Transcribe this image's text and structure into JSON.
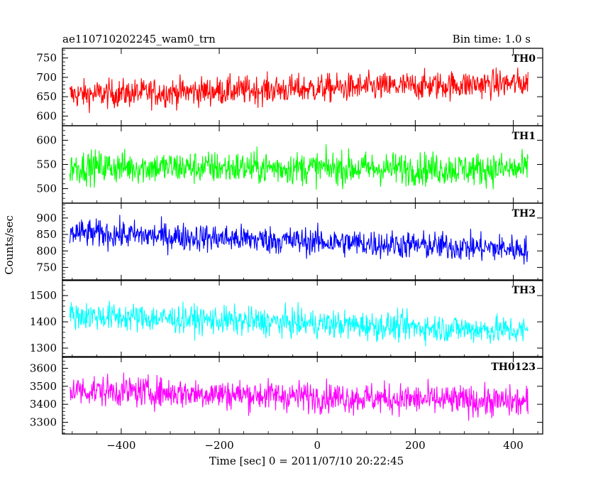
{
  "header": {
    "title": "ae110710202245_wam0_trn",
    "bin_time": "Bin time: 1.0 s"
  },
  "chart_data": {
    "type": "line",
    "title": "ae110710202245_wam0_trn",
    "xlabel": "Time [sec] 0 = 2011/07/10 20:22:45",
    "ylabel": "Counts/sec",
    "xlim": [
      -520,
      460
    ],
    "x_range": [
      -505,
      430
    ],
    "x_step": 1.0,
    "x_ticks": [
      -400,
      -200,
      0,
      200,
      400
    ],
    "grid": false,
    "panels": [
      {
        "name": "TH0",
        "color": "#ff0000",
        "ylim": [
          575,
          775
        ],
        "y_ticks": [
          600,
          650,
          700,
          750
        ],
        "trend_start": 655,
        "trend_end": 685,
        "noise": 26
      },
      {
        "name": "TH1",
        "color": "#00ff00",
        "ylim": [
          470,
          630
        ],
        "y_ticks": [
          500,
          550,
          600
        ],
        "trend_start": 545,
        "trend_end": 540,
        "noise": 24
      },
      {
        "name": "TH2",
        "color": "#0000ff",
        "ylim": [
          710,
          945
        ],
        "y_ticks": [
          750,
          800,
          850,
          900
        ],
        "trend_start": 855,
        "trend_end": 805,
        "noise": 30
      },
      {
        "name": "TH3",
        "color": "#00ffff",
        "ylim": [
          1265,
          1560
        ],
        "y_ticks": [
          1300,
          1400,
          1500
        ],
        "trend_start": 1425,
        "trend_end": 1365,
        "noise": 38
      },
      {
        "name": "TH0123",
        "color": "#ff00ff",
        "ylim": [
          3235,
          3665
        ],
        "y_ticks": [
          3300,
          3400,
          3500,
          3600
        ],
        "trend_start": 3480,
        "trend_end": 3410,
        "noise": 60
      }
    ]
  }
}
